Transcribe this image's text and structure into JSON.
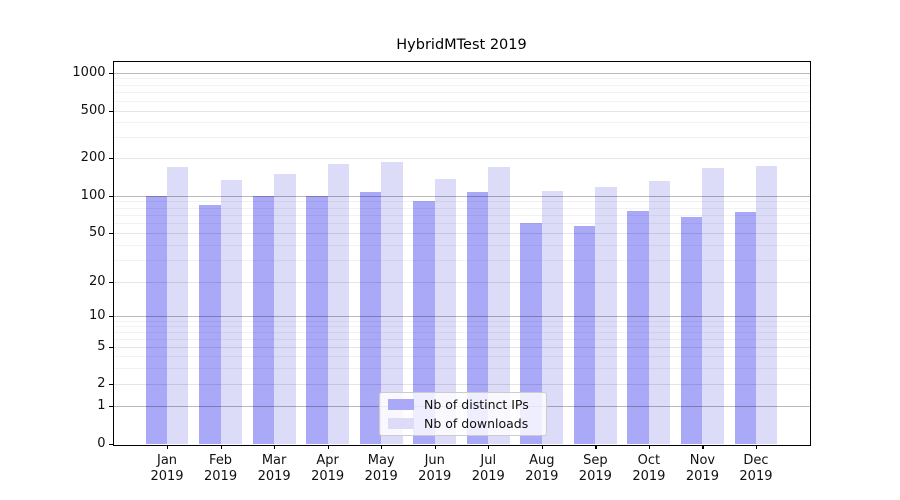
{
  "title": "HybridMTest 2019",
  "colors": {
    "bar_distinct_ips": "#a9a9f7",
    "bar_downloads": "#dcdcf9",
    "spine": "#000000",
    "grid_major": "#bababa",
    "grid_minor": "#e9e9e9",
    "legend_border": "#cccccc"
  },
  "legend": {
    "items": [
      {
        "label": "Nb of distinct IPs",
        "color": "#a9a9f7"
      },
      {
        "label": "Nb of downloads",
        "color": "#dcdcf9"
      }
    ]
  },
  "chart_data": {
    "type": "bar",
    "title": "HybridMTest 2019",
    "categories": [
      "Jan 2019",
      "Feb 2019",
      "Mar 2019",
      "Apr 2019",
      "May 2019",
      "Jun 2019",
      "Jul 2019",
      "Aug 2019",
      "Sep 2019",
      "Oct 2019",
      "Nov 2019",
      "Dec 2019"
    ],
    "series": [
      {
        "name": "Nb of distinct IPs",
        "color": "#a9a9f7",
        "values": [
          100,
          85,
          100,
          100,
          108,
          91,
          107,
          60,
          57,
          76,
          67,
          74
        ]
      },
      {
        "name": "Nb of downloads",
        "color": "#dcdcf9",
        "values": [
          170,
          135,
          150,
          181,
          186,
          136,
          170,
          109,
          117,
          131,
          168,
          172
        ]
      }
    ],
    "xlabel": "",
    "ylabel": "",
    "yscale": "symlog",
    "yticks": [
      0,
      1,
      2,
      5,
      10,
      20,
      50,
      100,
      200,
      500,
      1000
    ],
    "ylim": [
      0,
      1000
    ],
    "grid": true,
    "legend_position": "lower center"
  }
}
